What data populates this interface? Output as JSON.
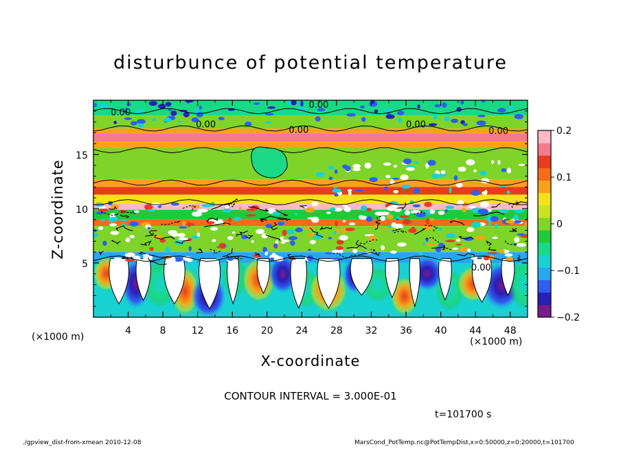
{
  "chart_data": {
    "type": "heatmap",
    "title": "disturbunce of potential temperature",
    "xlabel": "X-coordinate",
    "ylabel": "Z-coordinate",
    "x_unit_label": "(×1000 m)",
    "xlim": [
      0,
      50
    ],
    "ylim": [
      0,
      20
    ],
    "x_ticks": [
      "4",
      "8",
      "12",
      "16",
      "20",
      "24",
      "28",
      "32",
      "36",
      "40",
      "44",
      "48"
    ],
    "y_ticks": [
      "5",
      "10",
      "15"
    ],
    "colorbar": {
      "range": [
        -0.2,
        0.2
      ],
      "ticks": [
        "0.2",
        "0.1",
        "0",
        "−0.1",
        "−0.2"
      ],
      "colors": [
        "#7a1a8a",
        "#2a1fb5",
        "#2f5ef0",
        "#25a8ef",
        "#18d2d2",
        "#1ad986",
        "#21c93a",
        "#7ed428",
        "#c8e31f",
        "#f5e21a",
        "#f8a21a",
        "#f56b1a",
        "#e93b1f",
        "#f57a8e",
        "#fbb9c4"
      ]
    },
    "contour_labels": [
      "0.00",
      "0.00",
      "0.00",
      "0.00",
      "0.00",
      "0.00",
      "0.00"
    ],
    "contour_interval": "CONTOUR INTERVAL = 3.000E-01",
    "time": "t=101700 s",
    "bands": [
      {
        "z": [
          18.6,
          20
        ],
        "value": -0.05
      },
      {
        "z": [
          17.4,
          18.6
        ],
        "value": 0.01
      },
      {
        "z": [
          16.9,
          17.4
        ],
        "value": 0.07
      },
      {
        "z": [
          16.2,
          16.9
        ],
        "value": 0.16
      },
      {
        "z": [
          15.6,
          16.2
        ],
        "value": 0.08
      },
      {
        "z": [
          12.7,
          15.6
        ],
        "value": 0.01
      },
      {
        "z": [
          12.0,
          12.7
        ],
        "value": 0.08
      },
      {
        "z": [
          11.3,
          12.0
        ],
        "value": 0.13
      },
      {
        "z": [
          10.5,
          11.3
        ],
        "value": 0.06
      },
      {
        "z": [
          9.9,
          10.5
        ],
        "value": 0.18
      },
      {
        "z": [
          9.0,
          9.9
        ],
        "value": -0.02
      },
      {
        "z": [
          8.4,
          9.0
        ],
        "value": 0.12
      },
      {
        "z": [
          6.0,
          8.4
        ],
        "value": 0.0
      },
      {
        "z": [
          5.0,
          6.0
        ],
        "value": -0.12
      },
      {
        "z": [
          0,
          5.0
        ],
        "value": -0.08
      }
    ]
  },
  "footer": {
    "left": "./gpview_dist-from-xmean   2010-12-08",
    "right": "MarsCond_PotTemp.nc@PotTempDist,x=0:50000,z=0:20000,t=101700"
  }
}
